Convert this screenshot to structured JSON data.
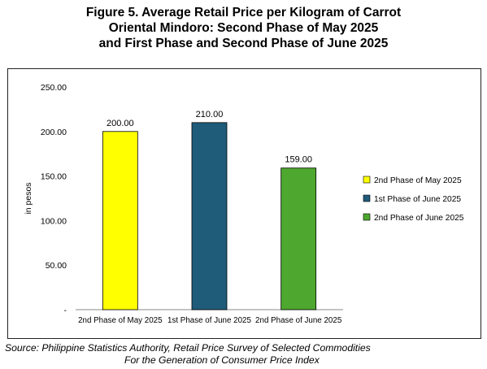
{
  "title_lines": [
    "Figure 5. Average Retail Price per Kilogram of Carrot",
    "Oriental Mindoro: Second Phase of May 2025",
    "and First Phase and Second Phase of June 2025"
  ],
  "source_lines": [
    "Source: Philippine Statistics Authority, Retail Price Survey of Selected Commodities",
    "For the Generation of Consumer Price Index"
  ],
  "chart_data": {
    "type": "bar",
    "title": "Figure 5. Average Retail Price per Kilogram of Carrot Oriental Mindoro: Second Phase of May 2025 and First Phase and Second Phase of June 2025",
    "ylabel": "in pesos",
    "ylim": [
      0,
      250
    ],
    "yticks": [
      "-",
      "50.00",
      "100.00",
      "150.00",
      "200.00",
      "250.00"
    ],
    "categories": [
      "2nd Phase of May 2025",
      "1st Phase of June 2025",
      "2nd Phase of June 2025"
    ],
    "values": [
      200,
      210,
      159
    ],
    "data_labels": [
      "200.00",
      "210.00",
      "159.00"
    ],
    "colors": [
      "#FFFF00",
      "#1F5C7A",
      "#4EA72E"
    ],
    "legend": {
      "position": "right",
      "entries": [
        "2nd Phase of May 2025",
        "1st Phase of June 2025",
        "2nd Phase of June 2025"
      ]
    },
    "grid": false
  }
}
